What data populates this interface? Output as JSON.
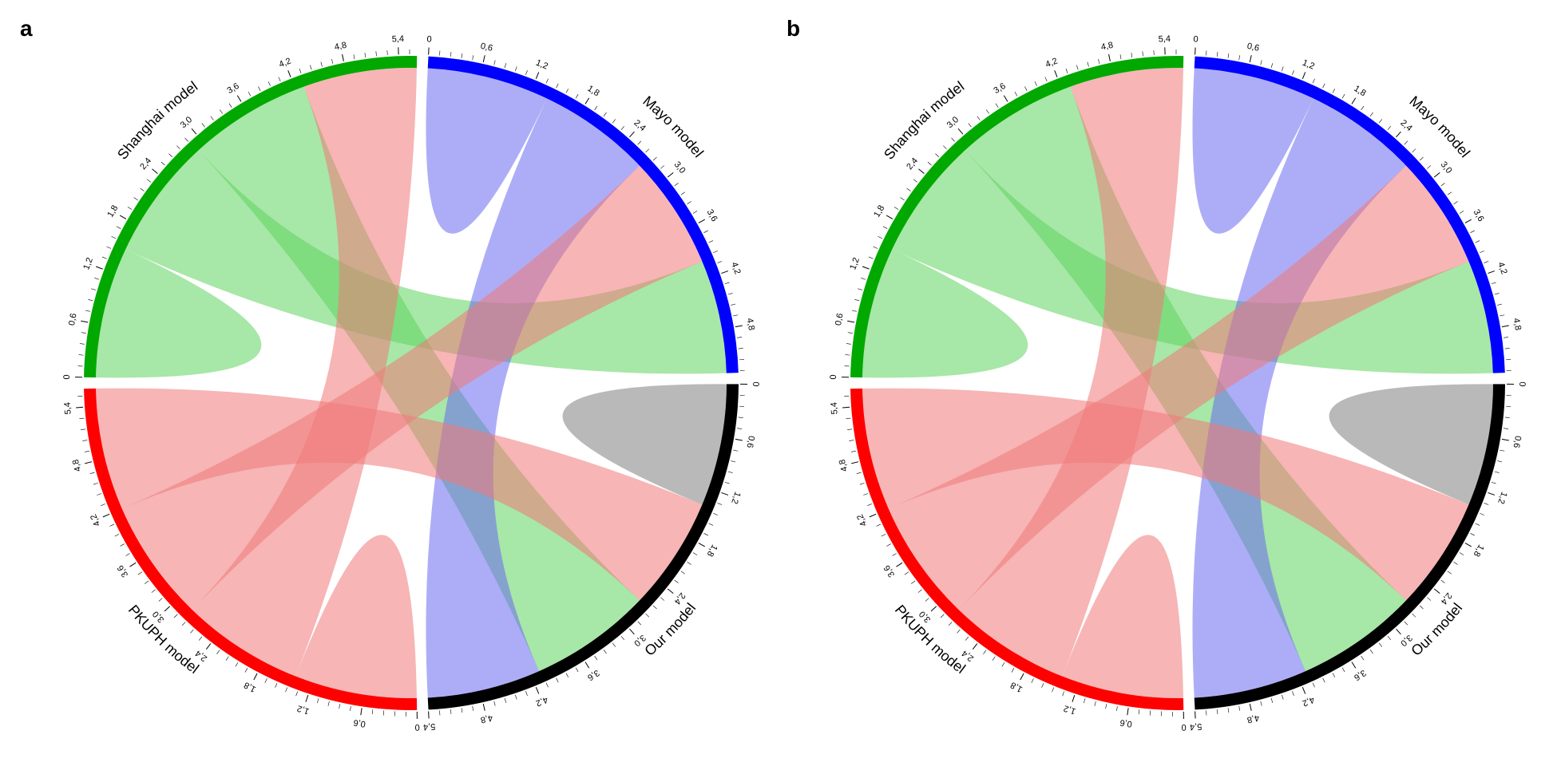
{
  "figure": {
    "background_color": "#ffffff",
    "aspect_ratio": "1960x950",
    "panels": [
      {
        "label": "a",
        "label_fontsize": 28,
        "label_fontweight": "bold"
      },
      {
        "label": "b",
        "label_fontsize": 28,
        "label_fontweight": "bold"
      }
    ]
  },
  "chord": {
    "type": "chord_diagram",
    "outer_radius": 410,
    "inner_radius": 395,
    "label_radius": 455,
    "tick_radius": 412,
    "tick_length": 6,
    "major_tick_step": 0.6,
    "minor_tick_step": 0.12,
    "tick_label_fontsize": 11,
    "tick_color": "#000000",
    "arc_label_fontsize": 18,
    "arc_gap_deg": 2,
    "ribbon_opacity": 0.55,
    "groups": [
      {
        "name": "Shanghai model",
        "color": "#00a800",
        "length": 5.6,
        "ribbon_color": "#5fd35f"
      },
      {
        "name": "Mayo model",
        "color": "#0000ff",
        "length": 5.3,
        "ribbon_color": "#6a6af0"
      },
      {
        "name": "Our model",
        "color": "#000000",
        "length": 5.4,
        "ribbon_color": "#808080"
      },
      {
        "name": "PKUPH model",
        "color": "#ff0000",
        "length": 5.6,
        "ribbon_color": "#f07878"
      }
    ],
    "matrix": [
      [
        1.5,
        1.4,
        1.4,
        1.3
      ],
      [
        1.3,
        1.4,
        1.3,
        1.3
      ],
      [
        1.4,
        1.3,
        1.4,
        1.3
      ],
      [
        1.4,
        1.4,
        1.4,
        1.4
      ]
    ]
  }
}
